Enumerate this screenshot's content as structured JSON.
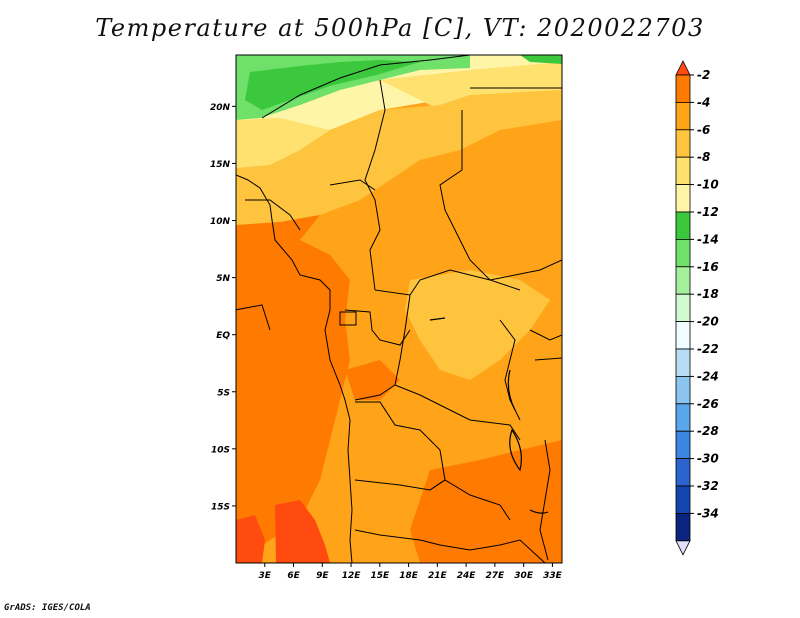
{
  "title": "Temperature at 500hPa [C], VT: 2020022703",
  "footer": "GrADS: IGES/COLA",
  "axes": {
    "lat_labels": [
      "20N",
      "15N",
      "10N",
      "5N",
      "EQ",
      "5S",
      "10S",
      "15S"
    ],
    "lat_values": [
      20,
      15,
      10,
      5,
      0,
      -5,
      -10,
      -15
    ],
    "lon_labels": [
      "3E",
      "6E",
      "9E",
      "12E",
      "15E",
      "18E",
      "21E",
      "24E",
      "27E",
      "30E",
      "33E"
    ],
    "lon_values": [
      3,
      6,
      9,
      12,
      15,
      18,
      21,
      24,
      27,
      30,
      33
    ],
    "lon_range": [
      0,
      34
    ],
    "lat_range": [
      -20,
      24.5
    ]
  },
  "colorbar": {
    "labels": [
      "-2",
      "-4",
      "-6",
      "-8",
      "-10",
      "-12",
      "-14",
      "-16",
      "-18",
      "-20",
      "-22",
      "-24",
      "-26",
      "-28",
      "-30",
      "-32",
      "-34"
    ],
    "colors": [
      "#ff4a10",
      "#ff7a00",
      "#ffa418",
      "#ffc43e",
      "#ffe170",
      "#fff5a8",
      "#3cc83c",
      "#6fe06a",
      "#a4f09c",
      "#d2fad2",
      "#f0fcff",
      "#b6dcf6",
      "#8cc4f0",
      "#5aa6ec",
      "#3c86e2",
      "#2a64cc",
      "#1446b0",
      "#0a2480",
      "#e0e0f8"
    ]
  },
  "map_colors": {
    "warm_m2": "#ff4a10",
    "warm_m4": "#ff7a00",
    "warm_m6": "#ffa418",
    "warm_m8": "#ffc43e",
    "warm_m10": "#ffe170",
    "warm_m12": "#fff5a8",
    "cool_m14": "#3cc83c",
    "cool_m16": "#6fe06a",
    "cool_m18": "#a4f09c"
  }
}
